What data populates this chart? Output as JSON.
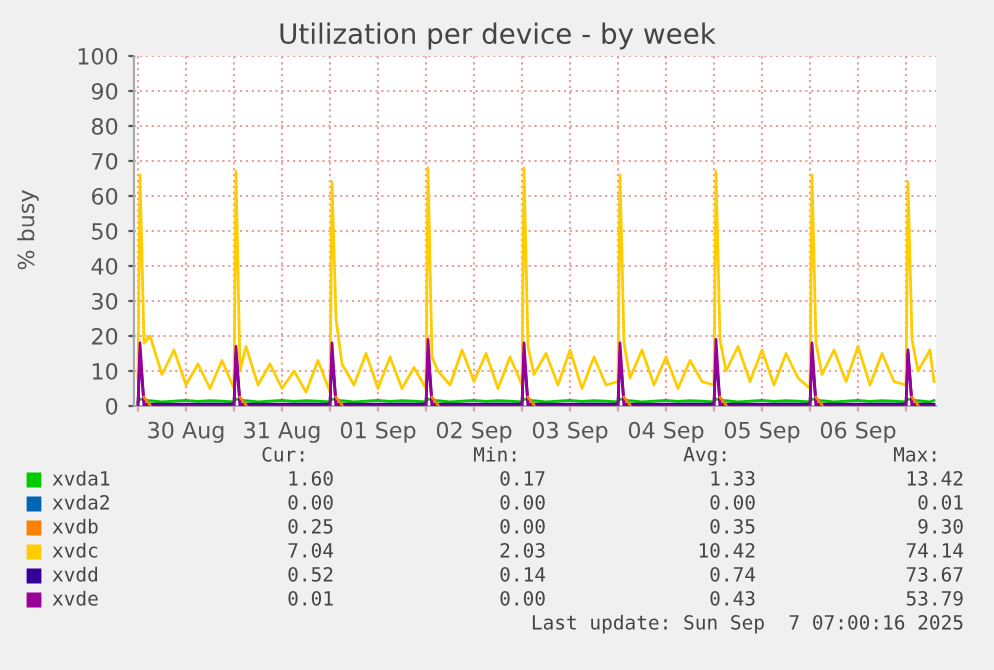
{
  "chart_data": {
    "type": "line",
    "title": "Utilization per device - by week",
    "ylabel": "% busy",
    "x": [
      "2025-08-30T00:00",
      "2025-08-30T00:30",
      "2025-08-30T01:30",
      "2025-08-30T03:00",
      "2025-08-30T06:00",
      "2025-08-30T09:00",
      "2025-08-30T12:00",
      "2025-08-30T15:00",
      "2025-08-30T18:00",
      "2025-08-30T21:00",
      "2025-08-31T00:00",
      "2025-08-31T00:30",
      "2025-08-31T01:30",
      "2025-08-31T03:00",
      "2025-08-31T06:00",
      "2025-08-31T09:00",
      "2025-08-31T12:00",
      "2025-08-31T15:00",
      "2025-08-31T18:00",
      "2025-08-31T21:00",
      "2025-09-01T00:00",
      "2025-09-01T00:30",
      "2025-09-01T01:30",
      "2025-09-01T03:00",
      "2025-09-01T06:00",
      "2025-09-01T09:00",
      "2025-09-01T12:00",
      "2025-09-01T15:00",
      "2025-09-01T18:00",
      "2025-09-01T21:00",
      "2025-09-02T00:00",
      "2025-09-02T00:30",
      "2025-09-02T01:30",
      "2025-09-02T03:00",
      "2025-09-02T06:00",
      "2025-09-02T09:00",
      "2025-09-02T12:00",
      "2025-09-02T15:00",
      "2025-09-02T18:00",
      "2025-09-02T21:00",
      "2025-09-03T00:00",
      "2025-09-03T00:30",
      "2025-09-03T01:30",
      "2025-09-03T03:00",
      "2025-09-03T06:00",
      "2025-09-03T09:00",
      "2025-09-03T12:00",
      "2025-09-03T15:00",
      "2025-09-03T18:00",
      "2025-09-03T21:00",
      "2025-09-04T00:00",
      "2025-09-04T00:30",
      "2025-09-04T01:30",
      "2025-09-04T03:00",
      "2025-09-04T06:00",
      "2025-09-04T09:00",
      "2025-09-04T12:00",
      "2025-09-04T15:00",
      "2025-09-04T18:00",
      "2025-09-04T21:00",
      "2025-09-05T00:00",
      "2025-09-05T00:30",
      "2025-09-05T01:30",
      "2025-09-05T03:00",
      "2025-09-05T06:00",
      "2025-09-05T09:00",
      "2025-09-05T12:00",
      "2025-09-05T15:00",
      "2025-09-05T18:00",
      "2025-09-05T21:00",
      "2025-09-06T00:00",
      "2025-09-06T00:30",
      "2025-09-06T01:30",
      "2025-09-06T03:00",
      "2025-09-06T06:00",
      "2025-09-06T09:00",
      "2025-09-06T12:00",
      "2025-09-06T15:00",
      "2025-09-06T18:00",
      "2025-09-06T21:00",
      "2025-09-07T00:00",
      "2025-09-07T00:30",
      "2025-09-07T01:30",
      "2025-09-07T03:00",
      "2025-09-07T06:00",
      "2025-09-07T07:00"
    ],
    "series": [
      {
        "name": "xvda1",
        "color": "#00cc00",
        "values": [
          1.2,
          2,
          1.8,
          1.5,
          1.2,
          1.4,
          1.6,
          1.3,
          1.5,
          1.4,
          1.2,
          2,
          1.8,
          1.5,
          1.2,
          1.4,
          1.6,
          1.3,
          1.5,
          1.4,
          1.2,
          2,
          1.8,
          1.5,
          1.2,
          1.4,
          1.6,
          1.3,
          1.5,
          1.4,
          1.2,
          2,
          1.8,
          1.5,
          1.2,
          1.4,
          1.6,
          1.3,
          1.5,
          1.4,
          1.2,
          2,
          1.8,
          1.5,
          1.2,
          1.4,
          1.6,
          1.3,
          1.5,
          1.4,
          1.2,
          2,
          1.8,
          1.5,
          1.2,
          1.4,
          1.6,
          1.3,
          1.5,
          1.4,
          1.2,
          2,
          1.8,
          1.5,
          1.2,
          1.4,
          1.6,
          1.3,
          1.5,
          1.4,
          1.2,
          2,
          1.8,
          1.5,
          1.2,
          1.4,
          1.6,
          1.3,
          1.5,
          1.4,
          1.2,
          2,
          1.8,
          1.5,
          1.2,
          1.6
        ]
      },
      {
        "name": "xvda2",
        "color": "#0066b3",
        "values": [
          null,
          null,
          null,
          null,
          null,
          null,
          null,
          null,
          null,
          null,
          null,
          null,
          null,
          null,
          null,
          null,
          null,
          null,
          null,
          null,
          null,
          null,
          null,
          null,
          null,
          null,
          null,
          null,
          null,
          null,
          null,
          null,
          null,
          null,
          null,
          null,
          null,
          null,
          null,
          null,
          null,
          null,
          null,
          null,
          null,
          null,
          null,
          null,
          null,
          null,
          null,
          null,
          null,
          null,
          null,
          null,
          null,
          null,
          null,
          null,
          null,
          null,
          null,
          null,
          null,
          null,
          null,
          null,
          null,
          null,
          null,
          null,
          null,
          null,
          null,
          null,
          null,
          null,
          null,
          null,
          null,
          null,
          null,
          null,
          null,
          null
        ]
      },
      {
        "name": "xvdb",
        "color": "#ff8000",
        "values": [
          null,
          null,
          2.5,
          0.3,
          null,
          null,
          null,
          null,
          null,
          null,
          null,
          null,
          2.5,
          0.3,
          null,
          null,
          null,
          null,
          null,
          null,
          null,
          null,
          2.5,
          0.3,
          null,
          null,
          null,
          null,
          null,
          null,
          null,
          null,
          2.5,
          0.3,
          null,
          null,
          null,
          null,
          null,
          null,
          null,
          null,
          2.5,
          0.3,
          null,
          null,
          null,
          null,
          null,
          null,
          null,
          null,
          2.5,
          0.3,
          null,
          null,
          null,
          null,
          null,
          null,
          null,
          null,
          2.5,
          0.3,
          null,
          null,
          null,
          null,
          null,
          null,
          null,
          null,
          2.5,
          0.3,
          null,
          null,
          null,
          null,
          null,
          null,
          null,
          null,
          2.5,
          0.3,
          null,
          null
        ]
      },
      {
        "name": "xvdc",
        "color": "#ffcc00",
        "values": [
          8,
          66,
          18,
          20,
          9,
          16,
          6,
          12,
          5,
          13,
          5,
          67,
          10,
          17,
          6,
          12,
          5,
          10,
          4,
          13,
          4,
          64,
          25,
          12,
          6,
          15,
          5,
          14,
          5,
          11,
          5,
          68,
          14,
          10,
          6,
          16,
          7,
          15,
          5,
          14,
          6,
          68,
          17,
          9,
          15,
          6,
          16,
          5,
          14,
          6,
          7,
          66,
          18,
          8,
          16,
          6,
          14,
          5,
          13,
          7,
          6,
          67,
          19,
          10,
          17,
          7,
          16,
          6,
          15,
          8,
          5,
          66,
          18,
          9,
          16,
          7,
          17,
          6,
          15,
          7,
          6,
          64,
          19,
          10,
          16,
          7
        ]
      },
      {
        "name": "xvdd",
        "color": "#330099",
        "values": [
          0.5,
          15,
          0.6,
          0.5,
          0.5,
          0.5,
          0.5,
          0.5,
          0.5,
          0.5,
          0.5,
          15,
          0.6,
          0.5,
          0.5,
          0.5,
          0.5,
          0.5,
          0.5,
          0.5,
          0.5,
          15,
          0.6,
          0.5,
          0.5,
          0.5,
          0.5,
          0.5,
          0.5,
          0.5,
          0.5,
          15,
          0.6,
          0.5,
          0.5,
          0.5,
          0.5,
          0.5,
          0.5,
          0.5,
          0.5,
          15,
          0.6,
          0.5,
          0.5,
          0.5,
          0.5,
          0.5,
          0.5,
          0.5,
          0.5,
          15,
          0.6,
          0.5,
          0.5,
          0.5,
          0.5,
          0.5,
          0.5,
          0.5,
          0.5,
          15,
          0.6,
          0.5,
          0.5,
          0.5,
          0.5,
          0.5,
          0.5,
          0.5,
          0.5,
          15,
          0.6,
          0.5,
          0.5,
          0.5,
          0.5,
          0.5,
          0.5,
          0.5,
          0.5,
          15,
          0.6,
          0.5,
          0.5,
          0.5
        ]
      },
      {
        "name": "xvde",
        "color": "#990099",
        "values": [
          0,
          18,
          0.2,
          0,
          0,
          0,
          0,
          0,
          0,
          0,
          0,
          17,
          0.2,
          0,
          0,
          0,
          0,
          0,
          0,
          0,
          0,
          18,
          0.2,
          0,
          0,
          0,
          0,
          0,
          0,
          0,
          0,
          19,
          0.2,
          0,
          0,
          0,
          0,
          0,
          0,
          0,
          0,
          18,
          0.2,
          0,
          0,
          0,
          0,
          0,
          0,
          0,
          0,
          18,
          0.2,
          0,
          0,
          0,
          0,
          0,
          0,
          0,
          0,
          19,
          0.2,
          0,
          0,
          0,
          0,
          0,
          0,
          0,
          0,
          18,
          0.2,
          0,
          0,
          0,
          0,
          0,
          0,
          0,
          0,
          16,
          0.2,
          0,
          0,
          0
        ]
      }
    ],
    "xlim": [
      "2025-08-29T23:00",
      "2025-09-07T07:30"
    ],
    "xticks": [
      {
        "value": "2025-08-30T00:00",
        "label": null
      },
      {
        "value": "2025-08-30T12:00",
        "label": "30 Aug"
      },
      {
        "value": "2025-08-31T00:00",
        "label": null
      },
      {
        "value": "2025-08-31T12:00",
        "label": "31 Aug"
      },
      {
        "value": "2025-09-01T00:00",
        "label": null
      },
      {
        "value": "2025-09-01T12:00",
        "label": "01 Sep"
      },
      {
        "value": "2025-09-02T00:00",
        "label": null
      },
      {
        "value": "2025-09-02T12:00",
        "label": "02 Sep"
      },
      {
        "value": "2025-09-03T00:00",
        "label": null
      },
      {
        "value": "2025-09-03T12:00",
        "label": "03 Sep"
      },
      {
        "value": "2025-09-04T00:00",
        "label": null
      },
      {
        "value": "2025-09-04T12:00",
        "label": "04 Sep"
      },
      {
        "value": "2025-09-05T00:00",
        "label": null
      },
      {
        "value": "2025-09-05T12:00",
        "label": "05 Sep"
      },
      {
        "value": "2025-09-06T00:00",
        "label": null
      },
      {
        "value": "2025-09-06T12:00",
        "label": "06 Sep"
      },
      {
        "value": "2025-09-07T00:00",
        "label": null
      }
    ],
    "ylim": [
      0,
      100
    ],
    "yticks": [
      0,
      10,
      20,
      30,
      40,
      50,
      60,
      70,
      80,
      90,
      100
    ],
    "grid": true,
    "legend": "bottom",
    "marker": "none",
    "line_style": "solid",
    "annotations": [
      "Cur:",
      "Min:",
      "Avg:",
      "Max:",
      "1.60",
      "0.17",
      "1.33",
      "13.42",
      "0.00",
      "0.00",
      "0.00",
      "0.01",
      "0.25",
      "0.00",
      "0.35",
      "9.30",
      "7.04",
      "2.03",
      "10.42",
      "74.14",
      "0.52",
      "0.14",
      "0.74",
      "73.67",
      "0.01",
      "0.00",
      "0.43",
      "53.79",
      "Last update: Sun Sep  7 07:00:16 2025"
    ]
  }
}
